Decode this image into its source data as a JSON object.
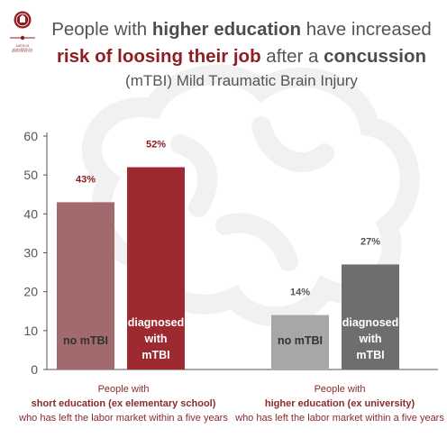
{
  "logo": {
    "line1": "AARHUS UNIVERSITY",
    "line2": "UNIVERSITET"
  },
  "title": {
    "line1_pre": "People with ",
    "line1_bold": "higher education",
    "line1_post": " have increased",
    "line2_bold1": "risk of loosing their job",
    "line2_mid": " after a ",
    "line2_bold2": "concussion",
    "line3": "(mTBI) Mild Traumatic Brain Injury"
  },
  "groups": [
    {
      "line1": "People with",
      "line2": "short education (ex elementary school)",
      "line3": "who has left the labor market within a five years"
    },
    {
      "line1": "People with",
      "line2": "higher education (ex university)",
      "line3": "who has left the labor market within a five years"
    }
  ],
  "colors": {
    "short_no_mtbi": "#a26a6c",
    "short_mtbi": "#9d2a30",
    "higher_no_mtbi": "#a7a7a7",
    "higher_mtbi": "#6e6e6e",
    "value_label_red": "#8f1d22",
    "value_label_grey": "#555555",
    "axis": "#555555"
  },
  "chart_data": {
    "type": "bar",
    "ylim": [
      0,
      60
    ],
    "yticks": [
      "0",
      "10",
      "20",
      "30",
      "40",
      "50",
      "60"
    ],
    "bars": [
      {
        "group": 0,
        "label": "no mTBI",
        "value": 43,
        "value_label": "43%",
        "color_key": "short_no_mtbi",
        "label_color_key": "value_label_red"
      },
      {
        "group": 0,
        "label": "diagnosed with mTBI",
        "value": 52,
        "value_label": "52%",
        "color_key": "short_mtbi",
        "label_color_key": "value_label_red"
      },
      {
        "group": 1,
        "label": "no mTBI",
        "value": 14,
        "value_label": "14%",
        "color_key": "higher_no_mtbi",
        "label_color_key": "value_label_grey"
      },
      {
        "group": 1,
        "label": "diagnosed with mTBI",
        "value": 27,
        "value_label": "27%",
        "color_key": "higher_mtbi",
        "label_color_key": "value_label_grey"
      }
    ]
  }
}
